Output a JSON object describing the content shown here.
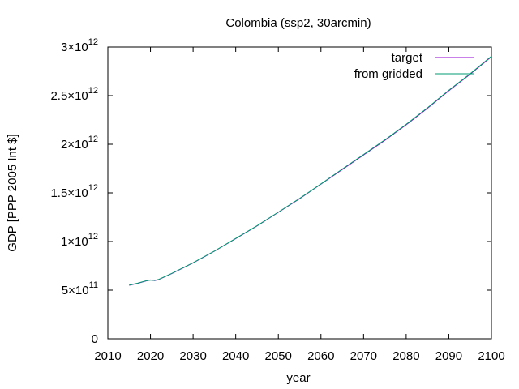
{
  "chart_data": {
    "type": "line",
    "title": "Colombia (ssp2, 30arcmin)",
    "xlabel": "year",
    "ylabel": "GDP [PPP 2005 Int $]",
    "xlim": [
      2010,
      2100
    ],
    "ylim": [
      0,
      3000000000000
    ],
    "x_ticks": [
      2010,
      2020,
      2030,
      2040,
      2050,
      2060,
      2070,
      2080,
      2090,
      2100
    ],
    "y_ticks": [
      {
        "value": 0,
        "mantissa": "0",
        "exponent": ""
      },
      {
        "value": 500000000000,
        "mantissa": "5×10",
        "exponent": "11"
      },
      {
        "value": 1000000000000,
        "mantissa": "1×10",
        "exponent": "12"
      },
      {
        "value": 1500000000000,
        "mantissa": "1.5×10",
        "exponent": "12"
      },
      {
        "value": 2000000000000,
        "mantissa": "2×10",
        "exponent": "12"
      },
      {
        "value": 2500000000000,
        "mantissa": "2.5×10",
        "exponent": "12"
      },
      {
        "value": 3000000000000,
        "mantissa": "3×10",
        "exponent": "12"
      }
    ],
    "grid": false,
    "legend_position": "top-right",
    "series": [
      {
        "name": "target",
        "color": "#9400d3",
        "x": [
          2015,
          2017,
          2019,
          2020,
          2021,
          2022,
          2025,
          2030,
          2035,
          2040,
          2045,
          2050,
          2055,
          2060,
          2065,
          2070,
          2075,
          2080,
          2085,
          2090,
          2095,
          2100
        ],
        "y": [
          550000000000,
          570000000000,
          595000000000,
          605000000000,
          598000000000,
          610000000000,
          670000000000,
          780000000000,
          900000000000,
          1030000000000,
          1160000000000,
          1300000000000,
          1440000000000,
          1590000000000,
          1740000000000,
          1890000000000,
          2040000000000,
          2200000000000,
          2370000000000,
          2550000000000,
          2720000000000,
          2900000000000
        ]
      },
      {
        "name": "from gridded",
        "color": "#009e73",
        "x": [
          2015,
          2017,
          2019,
          2020,
          2021,
          2022,
          2025,
          2030,
          2035,
          2040,
          2045,
          2050,
          2055,
          2060,
          2065,
          2070,
          2075,
          2080,
          2085,
          2090,
          2095,
          2100
        ],
        "y": [
          552000000000,
          572000000000,
          597000000000,
          603000000000,
          600000000000,
          612000000000,
          672000000000,
          782000000000,
          902000000000,
          1032000000000,
          1162000000000,
          1302000000000,
          1443000000000,
          1592000000000,
          1745000000000,
          1895000000000,
          2045000000000,
          2205000000000,
          2375000000000,
          2555000000000,
          2725000000000,
          2905000000000
        ]
      }
    ]
  }
}
